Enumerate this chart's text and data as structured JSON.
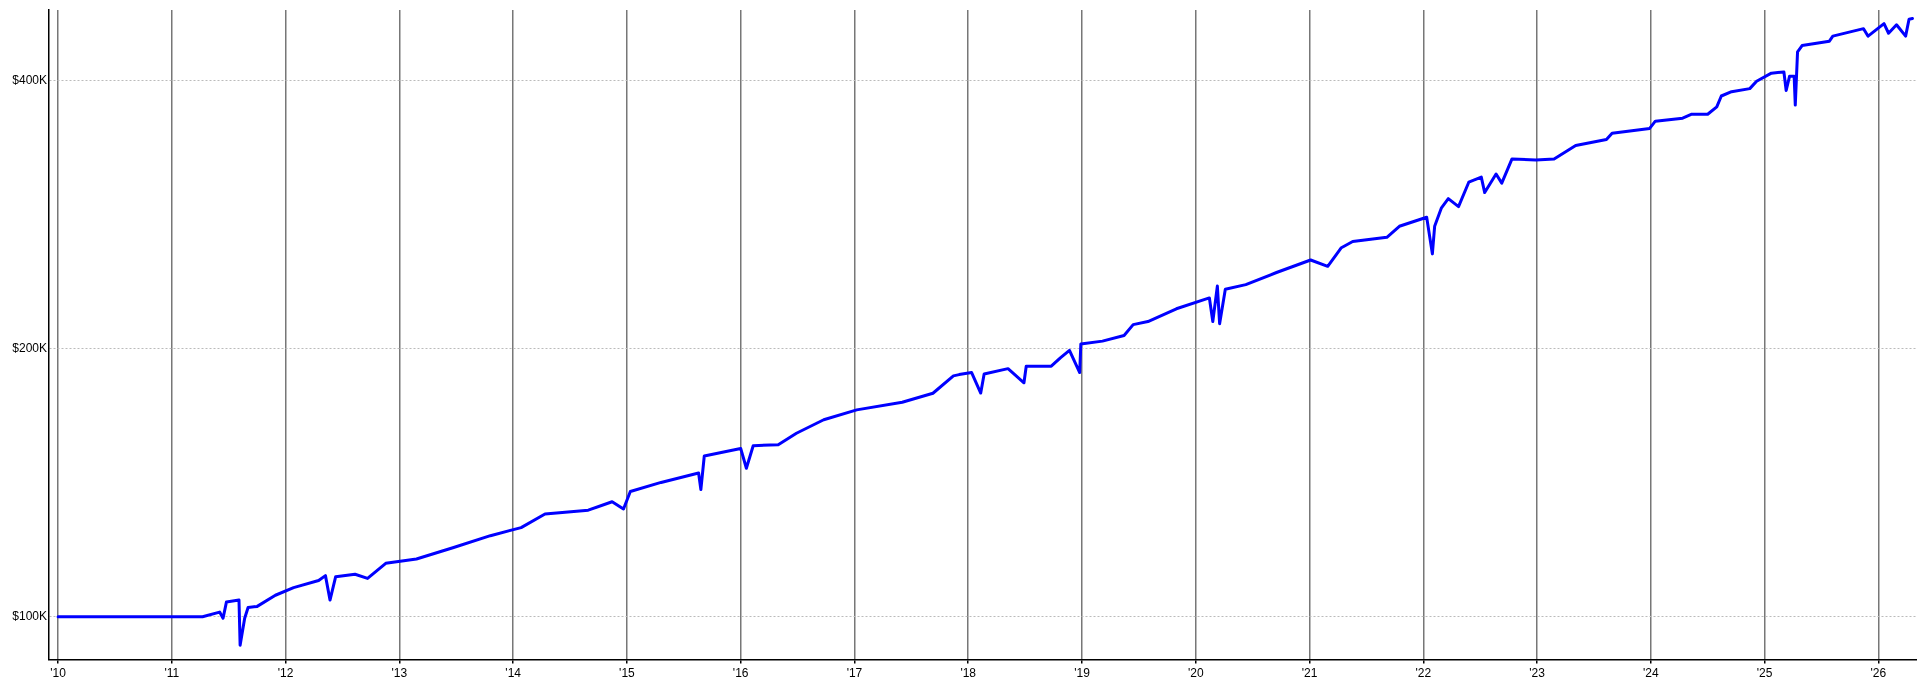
{
  "chart_data": {
    "type": "line",
    "log": "y",
    "grid": true,
    "legend": false,
    "marker": "none",
    "line_style": "solid",
    "xlim": [
      2009.92,
      2026.34
    ],
    "xticks": [
      {
        "value": 2010,
        "label": "'10"
      },
      {
        "value": 2011,
        "label": "'11"
      },
      {
        "value": 2012,
        "label": "'12"
      },
      {
        "value": 2013,
        "label": "'13"
      },
      {
        "value": 2014,
        "label": "'14"
      },
      {
        "value": 2015,
        "label": "'15"
      },
      {
        "value": 2016,
        "label": "'16"
      },
      {
        "value": 2017,
        "label": "'17"
      },
      {
        "value": 2018,
        "label": "'18"
      },
      {
        "value": 2019,
        "label": "'19"
      },
      {
        "value": 2020,
        "label": "'20"
      },
      {
        "value": 2021,
        "label": "'21"
      },
      {
        "value": 2022,
        "label": "'22"
      },
      {
        "value": 2023,
        "label": "'23"
      },
      {
        "value": 2024,
        "label": "'24"
      },
      {
        "value": 2025,
        "label": "'25"
      },
      {
        "value": 2026,
        "label": "'26"
      }
    ],
    "ylim": [
      89500,
      480000
    ],
    "yticks": [
      {
        "value": 100000,
        "label": "$100K"
      },
      {
        "value": 200000,
        "label": "$200K"
      },
      {
        "value": 400000,
        "label": "$400K"
      }
    ],
    "series": [
      {
        "color": "#0000ff",
        "x": [
          2010.0,
          2011.27,
          2011.42,
          2011.45,
          2011.48,
          2011.59,
          2011.6,
          2011.64,
          2011.67,
          2011.75,
          2011.91,
          2012.07,
          2012.29,
          2012.35,
          2012.39,
          2012.44,
          2012.61,
          2012.72,
          2012.88,
          2013.15,
          2013.47,
          2013.8,
          2014.07,
          2014.28,
          2014.66,
          2014.87,
          2014.97,
          2015.03,
          2015.3,
          2015.63,
          2015.65,
          2015.68,
          2016.0,
          2016.05,
          2016.11,
          2016.33,
          2016.49,
          2016.73,
          2017.02,
          2017.42,
          2017.69,
          2017.87,
          2017.92,
          2018.03,
          2018.11,
          2018.14,
          2018.35,
          2018.49,
          2018.51,
          2018.73,
          2018.81,
          2018.89,
          2018.98,
          2018.99,
          2019.18,
          2019.37,
          2019.45,
          2019.58,
          2019.83,
          2020.12,
          2020.15,
          2020.19,
          2020.21,
          2020.26,
          2020.44,
          2020.71,
          2021.01,
          2021.16,
          2021.28,
          2021.38,
          2021.68,
          2021.79,
          2022.03,
          2022.08,
          2022.1,
          2022.16,
          2022.22,
          2022.31,
          2022.4,
          2022.51,
          2022.54,
          2022.64,
          2022.69,
          2022.78,
          2022.99,
          2023.15,
          2023.34,
          2023.61,
          2023.66,
          2023.99,
          2024.04,
          2024.28,
          2024.36,
          2024.5,
          2024.58,
          2024.62,
          2024.71,
          2024.87,
          2024.93,
          2025.06,
          2025.17,
          2025.19,
          2025.22,
          2025.26,
          2025.27,
          2025.29,
          2025.33,
          2025.57,
          2025.6,
          2025.87,
          2025.91,
          2026.05,
          2026.09,
          2026.16,
          2026.24,
          2026.27,
          2026.3
        ],
        "values": [
          100000,
          100000,
          101200,
          99600,
          103900,
          104400,
          92900,
          99600,
          102400,
          102700,
          105700,
          107800,
          109800,
          111200,
          104400,
          110900,
          111600,
          110400,
          114800,
          116100,
          119500,
          123300,
          125900,
          130400,
          131700,
          134600,
          132100,
          138200,
          141500,
          145000,
          138900,
          151500,
          154500,
          146800,
          155600,
          156000,
          160700,
          166400,
          170700,
          174100,
          178200,
          186400,
          187000,
          188000,
          178300,
          187300,
          189900,
          183100,
          191100,
          191100,
          195300,
          199100,
          188000,
          202400,
          203900,
          206900,
          212800,
          214500,
          221700,
          228000,
          214500,
          235100,
          213300,
          233200,
          236000,
          243500,
          251500,
          247400,
          259600,
          263800,
          266700,
          274400,
          280900,
          255500,
          274400,
          287800,
          294700,
          288700,
          307500,
          311600,
          299400,
          314100,
          306800,
          326600,
          325600,
          326600,
          338100,
          343400,
          349100,
          353400,
          360100,
          362900,
          366600,
          366600,
          373700,
          384300,
          388600,
          391700,
          399300,
          407700,
          408900,
          389800,
          404500,
          404500,
          375400,
          430800,
          437800,
          442800,
          448600,
          457400,
          448600,
          463400,
          452000,
          462000,
          448600,
          468700,
          469500
        ]
      }
    ]
  }
}
